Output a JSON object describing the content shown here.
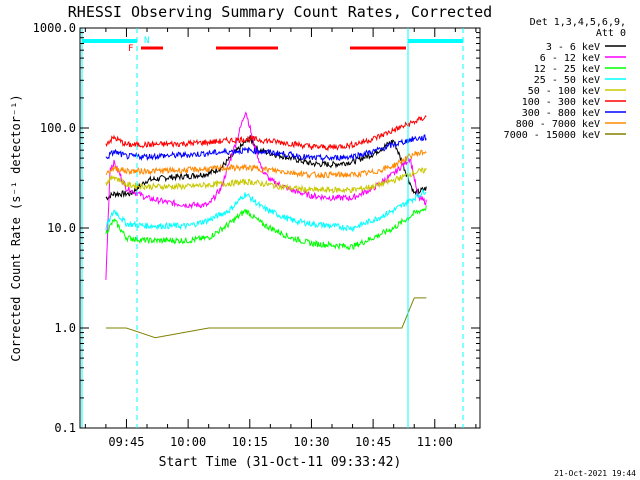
{
  "chart_data": {
    "type": "line",
    "title": "RHESSI Observing Summary Count Rates, Corrected",
    "xlabel": "Start Time (31-Oct-11 09:33:42)",
    "ylabel": "Corrected Count Rate (s⁻¹ detector⁻¹)",
    "yscale": "log",
    "ylim": [
      0.1,
      1000.0
    ],
    "xlim": [
      "09:33:42",
      "11:11"
    ],
    "ytick_labels": [
      "0.1",
      "1.0",
      "10.0",
      "100.0",
      "1000.0"
    ],
    "xtick_labels": [
      "09:45",
      "10:00",
      "10:15",
      "10:30",
      "10:45",
      "11:00"
    ],
    "xtick_values": [
      "09:45",
      "10:00",
      "10:15",
      "10:30",
      "10:45",
      "11:00"
    ],
    "legend_header": [
      "Det 1,3,4,5,6,9,",
      "Att 0"
    ],
    "legend_position": "right, outside plot",
    "footer_date": "21-Oct-2021 19:44",
    "markers": [
      {
        "label": "F",
        "color": "#ff0000"
      },
      {
        "label": "N",
        "color": "#00ffff"
      }
    ],
    "series": [
      {
        "name": "3 - 6 keV",
        "color": "#000000",
        "points": [
          [
            "09:40",
            20
          ],
          [
            "09:42",
            22
          ],
          [
            "09:46",
            22
          ],
          [
            "09:50",
            30
          ],
          [
            "09:55",
            32
          ],
          [
            "10:00",
            33
          ],
          [
            "10:05",
            35
          ],
          [
            "10:08",
            40
          ],
          [
            "10:12",
            60
          ],
          [
            "10:15",
            80
          ],
          [
            "10:17",
            60
          ],
          [
            "10:20",
            56
          ],
          [
            "10:25",
            50
          ],
          [
            "10:30",
            44
          ],
          [
            "10:35",
            43
          ],
          [
            "10:40",
            46
          ],
          [
            "10:45",
            55
          ],
          [
            "10:50",
            75
          ],
          [
            "10:55",
            22
          ],
          [
            "10:58",
            25
          ]
        ]
      },
      {
        "name": "6 - 12 keV",
        "color": "#ff00ff",
        "points": [
          [
            "09:40",
            3
          ],
          [
            "09:41",
            40
          ],
          [
            "09:42",
            45
          ],
          [
            "09:45",
            25
          ],
          [
            "09:50",
            20
          ],
          [
            "09:55",
            18
          ],
          [
            "10:00",
            17
          ],
          [
            "10:05",
            17
          ],
          [
            "10:08",
            25
          ],
          [
            "10:12",
            80
          ],
          [
            "10:14",
            150
          ],
          [
            "10:16",
            70
          ],
          [
            "10:18",
            38
          ],
          [
            "10:20",
            30
          ],
          [
            "10:25",
            24
          ],
          [
            "10:30",
            21
          ],
          [
            "10:35",
            20
          ],
          [
            "10:40",
            20
          ],
          [
            "10:45",
            25
          ],
          [
            "10:50",
            35
          ],
          [
            "10:54",
            50
          ],
          [
            "10:56",
            20
          ],
          [
            "10:58",
            18
          ]
        ]
      },
      {
        "name": "12 - 25 keV",
        "color": "#00ff00",
        "points": [
          [
            "09:40",
            9
          ],
          [
            "09:42",
            12
          ],
          [
            "09:45",
            8
          ],
          [
            "09:50",
            7.5
          ],
          [
            "10:00",
            7.5
          ],
          [
            "10:05",
            8
          ],
          [
            "10:10",
            11
          ],
          [
            "10:14",
            15
          ],
          [
            "10:18",
            11
          ],
          [
            "10:25",
            8
          ],
          [
            "10:30",
            7
          ],
          [
            "10:40",
            6.5
          ],
          [
            "10:45",
            8
          ],
          [
            "10:50",
            10
          ],
          [
            "10:55",
            14
          ],
          [
            "10:58",
            16
          ]
        ]
      },
      {
        "name": "25 - 50 keV",
        "color": "#00ffff",
        "points": [
          [
            "09:40",
            10
          ],
          [
            "09:42",
            15
          ],
          [
            "09:45",
            11
          ],
          [
            "09:50",
            10.5
          ],
          [
            "10:00",
            10.5
          ],
          [
            "10:05",
            12
          ],
          [
            "10:10",
            15
          ],
          [
            "10:14",
            22
          ],
          [
            "10:18",
            16
          ],
          [
            "10:25",
            12
          ],
          [
            "10:30",
            11
          ],
          [
            "10:40",
            10
          ],
          [
            "10:45",
            12
          ],
          [
            "10:50",
            15
          ],
          [
            "10:55",
            20
          ],
          [
            "10:58",
            24
          ]
        ]
      },
      {
        "name": "50 - 100 keV",
        "color": "#c8c800",
        "points": [
          [
            "09:40",
            28
          ],
          [
            "09:42",
            33
          ],
          [
            "09:45",
            27
          ],
          [
            "09:50",
            26
          ],
          [
            "10:00",
            26
          ],
          [
            "10:05",
            27
          ],
          [
            "10:10",
            28
          ],
          [
            "10:15",
            29
          ],
          [
            "10:20",
            27
          ],
          [
            "10:25",
            25
          ],
          [
            "10:30",
            24
          ],
          [
            "10:40",
            24
          ],
          [
            "10:45",
            26
          ],
          [
            "10:50",
            30
          ],
          [
            "10:55",
            36
          ],
          [
            "10:58",
            38
          ]
        ]
      },
      {
        "name": "100 - 300 keV",
        "color": "#ff0000",
        "points": [
          [
            "09:40",
            70
          ],
          [
            "09:42",
            80
          ],
          [
            "09:45",
            68
          ],
          [
            "09:50",
            68
          ],
          [
            "10:00",
            70
          ],
          [
            "10:05",
            72
          ],
          [
            "10:10",
            75
          ],
          [
            "10:15",
            78
          ],
          [
            "10:20",
            74
          ],
          [
            "10:25",
            70
          ],
          [
            "10:30",
            65
          ],
          [
            "10:35",
            64
          ],
          [
            "10:40",
            68
          ],
          [
            "10:45",
            78
          ],
          [
            "10:50",
            95
          ],
          [
            "10:55",
            115
          ],
          [
            "10:58",
            130
          ]
        ]
      },
      {
        "name": "300 - 800 keV",
        "color": "#0000ff",
        "points": [
          [
            "09:40",
            50
          ],
          [
            "09:42",
            58
          ],
          [
            "09:45",
            52
          ],
          [
            "09:50",
            52
          ],
          [
            "10:00",
            54
          ],
          [
            "10:05",
            56
          ],
          [
            "10:10",
            58
          ],
          [
            "10:15",
            60
          ],
          [
            "10:20",
            57
          ],
          [
            "10:25",
            54
          ],
          [
            "10:30",
            50
          ],
          [
            "10:35",
            50
          ],
          [
            "10:40",
            52
          ],
          [
            "10:45",
            58
          ],
          [
            "10:50",
            68
          ],
          [
            "10:55",
            78
          ],
          [
            "10:58",
            80
          ]
        ]
      },
      {
        "name": "800 - 7000 keV",
        "color": "#ff8800",
        "points": [
          [
            "09:40",
            35
          ],
          [
            "09:42",
            40
          ],
          [
            "09:45",
            37
          ],
          [
            "09:50",
            37
          ],
          [
            "10:00",
            38
          ],
          [
            "10:05",
            39
          ],
          [
            "10:10",
            40
          ],
          [
            "10:15",
            40
          ],
          [
            "10:20",
            38
          ],
          [
            "10:25",
            36
          ],
          [
            "10:30",
            34
          ],
          [
            "10:40",
            34
          ],
          [
            "10:45",
            36
          ],
          [
            "10:50",
            42
          ],
          [
            "10:55",
            55
          ],
          [
            "10:58",
            58
          ]
        ]
      },
      {
        "name": "7000 - 15000 keV",
        "color": "#808000",
        "points": [
          [
            "09:40",
            1.0
          ],
          [
            "09:45",
            1.0
          ],
          [
            "09:52",
            0.8
          ],
          [
            "10:05",
            1.0
          ],
          [
            "10:15",
            1.0
          ],
          [
            "10:25",
            1.0
          ],
          [
            "10:35",
            1.0
          ],
          [
            "10:45",
            1.0
          ],
          [
            "10:52",
            1.0
          ],
          [
            "10:55",
            2.0
          ],
          [
            "10:58",
            2.0
          ]
        ]
      }
    ]
  }
}
